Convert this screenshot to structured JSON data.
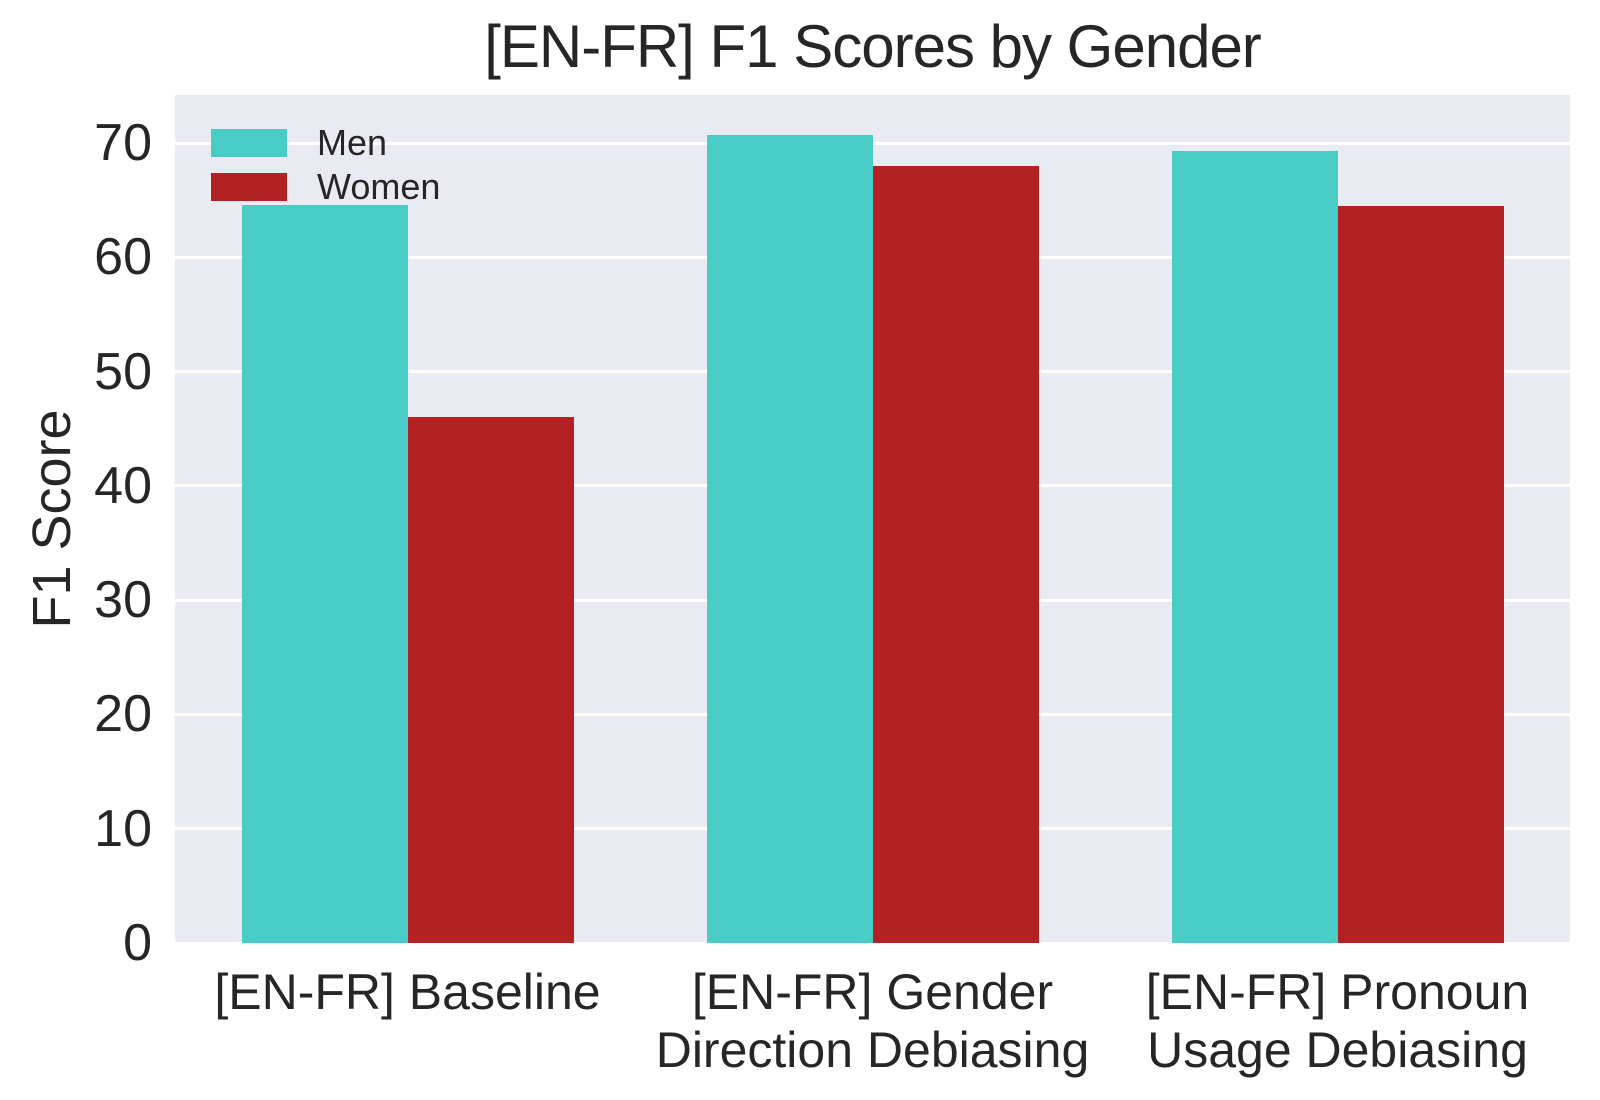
{
  "chart_data": {
    "type": "bar",
    "title": "[EN-FR] F1 Scores by Gender",
    "xlabel": "",
    "ylabel": "F1 Score",
    "categories": [
      "[EN-FR] Baseline",
      "[EN-FR] Gender\nDirection Debiasing",
      "[EN-FR] Pronoun\nUsage Debiasing"
    ],
    "series": [
      {
        "name": "Men",
        "color": "#49CCC6",
        "values": [
          64.6,
          70.7,
          69.3
        ]
      },
      {
        "name": "Women",
        "color": "#B22222",
        "values": [
          46.0,
          68.0,
          64.5
        ]
      }
    ],
    "yticks": [
      0,
      10,
      20,
      30,
      40,
      50,
      60,
      70
    ],
    "ylim": [
      0,
      74.2
    ],
    "grid": true,
    "legend_position": "upper-left",
    "colors": {
      "plot_background": "#EAEAF2",
      "gridline": "#FFFFFF",
      "text": "#262626",
      "figure_background": "#FFFFFF"
    }
  }
}
